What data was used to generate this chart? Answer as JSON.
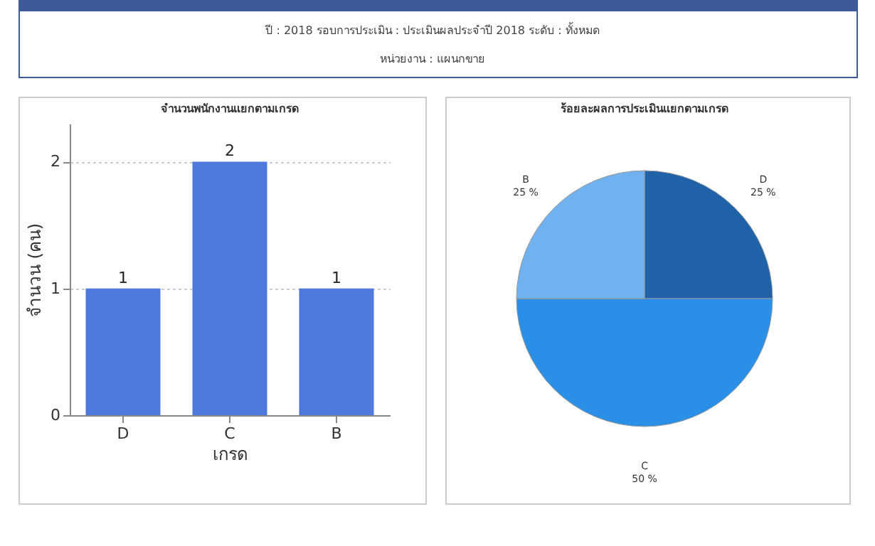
{
  "chart_data": [
    {
      "type": "other",
      "annotations": [
        "ปี : 2018   รอบการประเมิน : ประเมินผลประจำปี 2018   ระดับ : ทั้งหมด",
        "หน่วยงาน : แผนกขาย"
      ]
    },
    {
      "type": "bar",
      "title": "จำนวนพนักงานแยกตามเกรด",
      "xlabel": "เกรด",
      "ylabel": "จำนวน (คน)",
      "categories": [
        "D",
        "C",
        "B"
      ],
      "values": [
        1,
        2,
        1
      ],
      "color": "#4f79dc",
      "ylim": [
        0,
        2.3
      ],
      "yticks": [
        0,
        1,
        2
      ],
      "grid": "y",
      "data_labels": true
    },
    {
      "type": "pie",
      "title": "ร้อยละผลการประเมินแยกตามเกรด",
      "categories": [
        "D",
        "C",
        "B"
      ],
      "values": [
        25,
        50,
        25
      ],
      "colors": [
        "#1f62a8",
        "#2a8fe6",
        "#6fb2ef"
      ],
      "value_labels": [
        "25 %",
        "50 %",
        "25 %"
      ]
    }
  ]
}
